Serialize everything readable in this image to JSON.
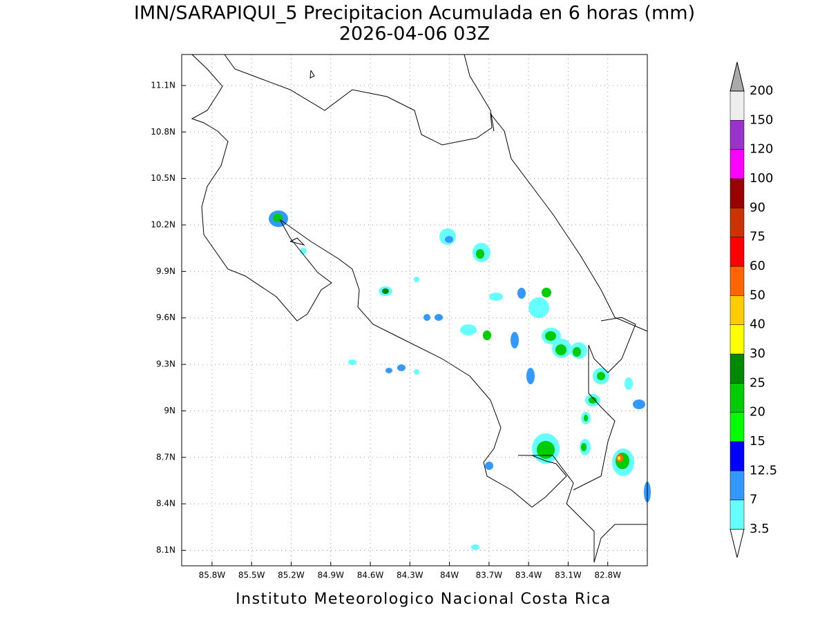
{
  "title": "IMN/SARAPIQUI_5 Precipitacion Acumulada en 6 horas (mm)",
  "subtitle": "2026-04-06 03Z",
  "footer": "Instituto Meteorologico Nacional Costa Rica",
  "map": {
    "lonlim": [
      -86.03,
      -82.5
    ],
    "latlim": [
      8.0,
      11.3
    ],
    "lon_ticks": [
      {
        "value": -85.8,
        "label": "85.8W"
      },
      {
        "value": -85.5,
        "label": "85.5W"
      },
      {
        "value": -85.2,
        "label": "85.2W"
      },
      {
        "value": -84.9,
        "label": "84.9W"
      },
      {
        "value": -84.6,
        "label": "84.6W"
      },
      {
        "value": -84.3,
        "label": "84.3W"
      },
      {
        "value": -84.0,
        "label": "84W"
      },
      {
        "value": -83.7,
        "label": "83.7W"
      },
      {
        "value": -83.4,
        "label": "83.4W"
      },
      {
        "value": -83.1,
        "label": "83.1W"
      },
      {
        "value": -82.8,
        "label": "82.8W"
      }
    ],
    "lat_ticks": [
      {
        "value": 8.1,
        "label": "8.1N"
      },
      {
        "value": 8.4,
        "label": "8.4N"
      },
      {
        "value": 8.7,
        "label": "8.7N"
      },
      {
        "value": 9.0,
        "label": "9N"
      },
      {
        "value": 9.3,
        "label": "9.3N"
      },
      {
        "value": 9.6,
        "label": "9.6N"
      },
      {
        "value": 9.9,
        "label": "9.9N"
      },
      {
        "value": 10.2,
        "label": "10.2N"
      },
      {
        "value": 10.5,
        "label": "10.5N"
      },
      {
        "value": 10.8,
        "label": "10.8N"
      },
      {
        "value": 11.1,
        "label": "11.1N"
      }
    ]
  },
  "colorbar": {
    "levels": [
      3.5,
      7,
      12.5,
      15,
      20,
      25,
      30,
      40,
      50,
      60,
      75,
      90,
      100,
      120,
      150,
      200
    ],
    "colors": [
      "#ffffff",
      "#66ffff",
      "#3399ff",
      "#0000ff",
      "#00ff00",
      "#00cc00",
      "#008800",
      "#ffff00",
      "#ffcc00",
      "#ff6600",
      "#ff0000",
      "#cc3300",
      "#990000",
      "#ff00ff",
      "#9933cc",
      "#eeeeee",
      "#aaaaaa"
    ]
  }
}
